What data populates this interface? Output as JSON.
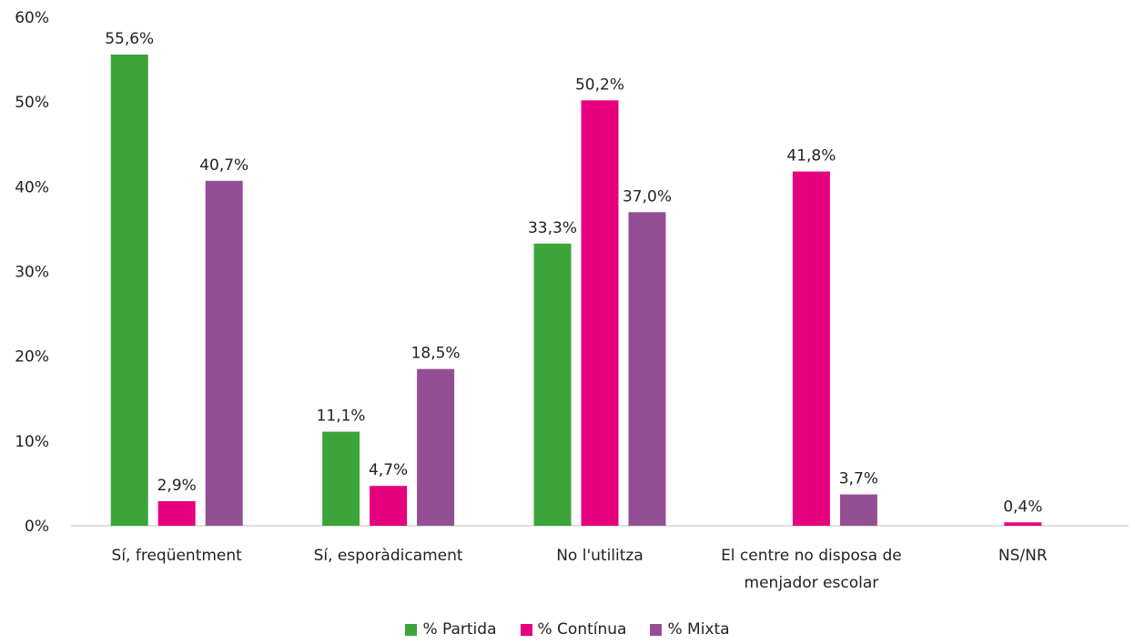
{
  "chart_data": {
    "type": "bar",
    "categories": [
      [
        "Sí, freqüentment"
      ],
      [
        "Sí, esporàdicament"
      ],
      [
        "No l'utilitza"
      ],
      [
        "El centre no disposa de",
        "menjador escolar"
      ],
      [
        "NS/NR"
      ]
    ],
    "series": [
      {
        "name": "% Partida",
        "color": "#3ca53a",
        "values": [
          55.6,
          11.1,
          33.3,
          null,
          null
        ],
        "labels": [
          "55,6%",
          "11,1%",
          "33,3%",
          "",
          ""
        ]
      },
      {
        "name": "% Contínua",
        "color": "#e6007e",
        "values": [
          2.9,
          4.7,
          50.2,
          41.8,
          0.4
        ],
        "labels": [
          "2,9%",
          "4,7%",
          "50,2%",
          "41,8%",
          "0,4%"
        ]
      },
      {
        "name": "% Mixta",
        "color": "#944f94",
        "values": [
          40.7,
          18.5,
          37.0,
          3.7,
          null
        ],
        "labels": [
          "40,7%",
          "18,5%",
          "37,0%",
          "3,7%",
          ""
        ]
      }
    ],
    "yticks": [
      0,
      10,
      20,
      30,
      40,
      50,
      60
    ],
    "ytick_labels": [
      "0%",
      "10%",
      "20%",
      "30%",
      "40%",
      "50%",
      "60%"
    ],
    "ylim": [
      0,
      60
    ],
    "grid": false,
    "legend_position": "bottom"
  }
}
